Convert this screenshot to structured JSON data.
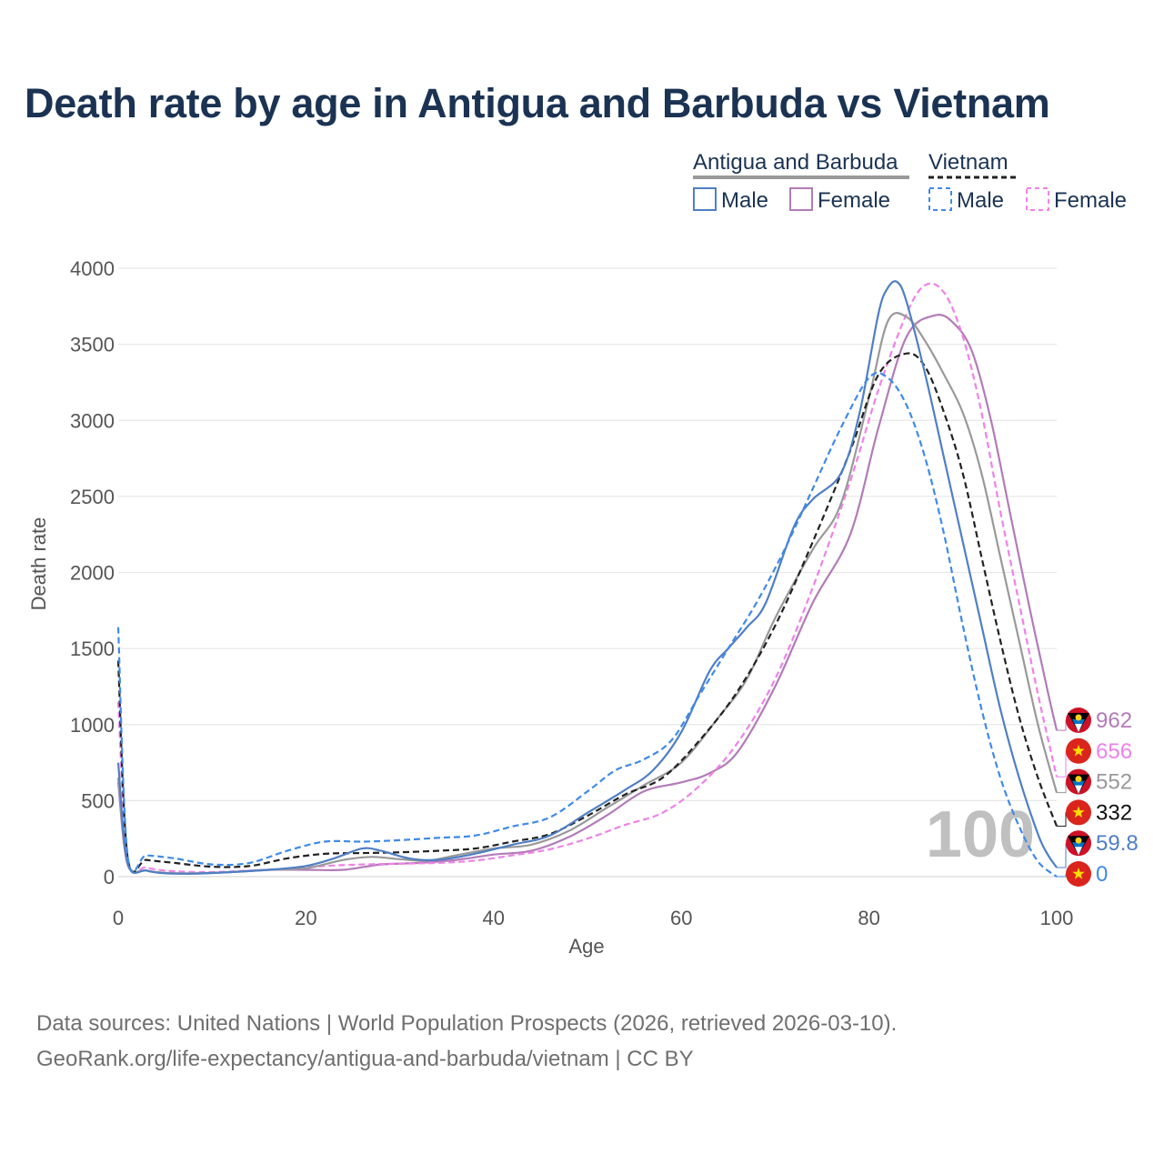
{
  "title": "Death rate by age in Antigua and Barbuda vs Vietnam",
  "legend": {
    "countries": [
      {
        "name": "Antigua and Barbuda",
        "style": "solid",
        "color": "#999999"
      },
      {
        "name": "Vietnam",
        "style": "dashed",
        "color": "#222222"
      }
    ],
    "entries": [
      {
        "label": "Male",
        "style": "solid",
        "color": "#4f7fc4"
      },
      {
        "label": "Female",
        "style": "solid",
        "color": "#b27bb8"
      },
      {
        "label": "Male",
        "style": "dashed",
        "color": "#3f8ae6"
      },
      {
        "label": "Female",
        "style": "dashed",
        "color": "#ee82e8"
      }
    ]
  },
  "watermark": "100",
  "footer": {
    "line1": "Data sources: United Nations | World Population Prospects (2026, retrieved 2026-03-10).",
    "line2": "GeoRank.org/life-expectancy/antigua-and-barbuda/vietnam | CC BY"
  },
  "chart_data": {
    "type": "line",
    "title": "Death rate by age in Antigua and Barbuda vs Vietnam",
    "xlabel": "Age",
    "ylabel": "Death rate",
    "xlim": [
      0,
      100
    ],
    "ylim": [
      0,
      4000
    ],
    "xticks": [
      0,
      20,
      40,
      60,
      80,
      100
    ],
    "yticks": [
      0,
      500,
      1000,
      1500,
      2000,
      2500,
      3000,
      3500,
      4000
    ],
    "grid": true,
    "legend_position": "top-right",
    "series": [
      {
        "name": "Antigua and Barbuda Female",
        "country": "Antigua and Barbuda",
        "sex": "Female",
        "color": "#b27bb8",
        "dash": false,
        "end_label": "962",
        "end_flag": "antigua-and-barbuda",
        "points": [
          [
            0,
            620
          ],
          [
            1,
            80
          ],
          [
            3,
            40
          ],
          [
            5,
            25
          ],
          [
            8,
            20
          ],
          [
            12,
            30
          ],
          [
            16,
            45
          ],
          [
            20,
            45
          ],
          [
            24,
            45
          ],
          [
            28,
            80
          ],
          [
            32,
            90
          ],
          [
            36,
            110
          ],
          [
            40,
            145
          ],
          [
            44,
            170
          ],
          [
            48,
            260
          ],
          [
            52,
            400
          ],
          [
            56,
            560
          ],
          [
            60,
            620
          ],
          [
            63,
            680
          ],
          [
            66,
            820
          ],
          [
            70,
            1250
          ],
          [
            74,
            1800
          ],
          [
            78,
            2250
          ],
          [
            81,
            2950
          ],
          [
            84,
            3550
          ],
          [
            87,
            3690
          ],
          [
            89,
            3640
          ],
          [
            91,
            3450
          ],
          [
            93,
            3000
          ],
          [
            95,
            2400
          ],
          [
            97,
            1800
          ],
          [
            99,
            1230
          ],
          [
            100,
            962
          ]
        ]
      },
      {
        "name": "Vietnam Female",
        "country": "Vietnam",
        "sex": "Female",
        "color": "#ee82e8",
        "dash": true,
        "end_label": "656",
        "end_flag": "vietnam",
        "points": [
          [
            0,
            1150
          ],
          [
            1,
            120
          ],
          [
            3,
            60
          ],
          [
            6,
            35
          ],
          [
            10,
            30
          ],
          [
            14,
            40
          ],
          [
            18,
            50
          ],
          [
            22,
            70
          ],
          [
            26,
            80
          ],
          [
            30,
            85
          ],
          [
            34,
            90
          ],
          [
            38,
            105
          ],
          [
            42,
            140
          ],
          [
            46,
            180
          ],
          [
            50,
            250
          ],
          [
            54,
            340
          ],
          [
            58,
            420
          ],
          [
            62,
            600
          ],
          [
            66,
            880
          ],
          [
            70,
            1300
          ],
          [
            74,
            1900
          ],
          [
            78,
            2600
          ],
          [
            81,
            3200
          ],
          [
            84,
            3700
          ],
          [
            86,
            3890
          ],
          [
            88,
            3840
          ],
          [
            90,
            3550
          ],
          [
            92,
            3050
          ],
          [
            94,
            2400
          ],
          [
            96,
            1800
          ],
          [
            98,
            1200
          ],
          [
            100,
            656
          ]
        ]
      },
      {
        "name": "Antigua and Barbuda Total",
        "country": "Antigua and Barbuda",
        "sex": "Total",
        "color": "#999999",
        "dash": false,
        "end_label": "552",
        "end_flag": "antigua-and-barbuda",
        "points": [
          [
            0,
            650
          ],
          [
            1,
            90
          ],
          [
            3,
            40
          ],
          [
            5,
            25
          ],
          [
            8,
            22
          ],
          [
            12,
            30
          ],
          [
            16,
            45
          ],
          [
            20,
            55
          ],
          [
            24,
            110
          ],
          [
            27,
            130
          ],
          [
            30,
            115
          ],
          [
            33,
            105
          ],
          [
            36,
            140
          ],
          [
            40,
            185
          ],
          [
            44,
            210
          ],
          [
            48,
            300
          ],
          [
            52,
            450
          ],
          [
            56,
            600
          ],
          [
            60,
            750
          ],
          [
            64,
            1050
          ],
          [
            67,
            1300
          ],
          [
            70,
            1700
          ],
          [
            74,
            2150
          ],
          [
            77,
            2450
          ],
          [
            80,
            3150
          ],
          [
            82,
            3650
          ],
          [
            84,
            3680
          ],
          [
            86,
            3520
          ],
          [
            88,
            3300
          ],
          [
            90,
            3050
          ],
          [
            92,
            2650
          ],
          [
            94,
            2100
          ],
          [
            96,
            1550
          ],
          [
            98,
            1000
          ],
          [
            100,
            552
          ]
        ]
      },
      {
        "name": "Vietnam Total",
        "country": "Vietnam",
        "sex": "Total",
        "color": "#222222",
        "dash": true,
        "end_label": "332",
        "end_flag": "vietnam",
        "points": [
          [
            0,
            1420
          ],
          [
            1,
            130
          ],
          [
            3,
            110
          ],
          [
            6,
            90
          ],
          [
            10,
            65
          ],
          [
            14,
            70
          ],
          [
            18,
            120
          ],
          [
            22,
            150
          ],
          [
            26,
            155
          ],
          [
            30,
            160
          ],
          [
            34,
            170
          ],
          [
            38,
            185
          ],
          [
            42,
            230
          ],
          [
            46,
            280
          ],
          [
            50,
            400
          ],
          [
            54,
            540
          ],
          [
            58,
            650
          ],
          [
            62,
            900
          ],
          [
            66,
            1220
          ],
          [
            70,
            1650
          ],
          [
            74,
            2200
          ],
          [
            78,
            2800
          ],
          [
            81,
            3300
          ],
          [
            84,
            3440
          ],
          [
            86,
            3350
          ],
          [
            88,
            3050
          ],
          [
            90,
            2650
          ],
          [
            92,
            2100
          ],
          [
            94,
            1550
          ],
          [
            96,
            1050
          ],
          [
            98,
            650
          ],
          [
            100,
            332
          ]
        ]
      },
      {
        "name": "Antigua and Barbuda Male",
        "country": "Antigua and Barbuda",
        "sex": "Male",
        "color": "#4f7fc4",
        "dash": false,
        "end_label": "59.8",
        "end_flag": "antigua-and-barbuda",
        "points": [
          [
            0,
            750
          ],
          [
            1,
            90
          ],
          [
            3,
            40
          ],
          [
            5,
            22
          ],
          [
            8,
            20
          ],
          [
            12,
            30
          ],
          [
            16,
            45
          ],
          [
            20,
            70
          ],
          [
            23,
            120
          ],
          [
            26,
            185
          ],
          [
            28,
            170
          ],
          [
            31,
            120
          ],
          [
            34,
            110
          ],
          [
            38,
            150
          ],
          [
            42,
            210
          ],
          [
            46,
            270
          ],
          [
            50,
            420
          ],
          [
            54,
            570
          ],
          [
            57,
            700
          ],
          [
            60,
            950
          ],
          [
            63,
            1350
          ],
          [
            65,
            1500
          ],
          [
            67,
            1640
          ],
          [
            69,
            1800
          ],
          [
            72,
            2300
          ],
          [
            74,
            2480
          ],
          [
            77,
            2650
          ],
          [
            79,
            3050
          ],
          [
            81,
            3700
          ],
          [
            82,
            3870
          ],
          [
            83,
            3910
          ],
          [
            84,
            3780
          ],
          [
            86,
            3300
          ],
          [
            88,
            2750
          ],
          [
            90,
            2200
          ],
          [
            92,
            1650
          ],
          [
            94,
            1100
          ],
          [
            96,
            650
          ],
          [
            98,
            280
          ],
          [
            99,
            150
          ],
          [
            100,
            59.8
          ]
        ]
      },
      {
        "name": "Vietnam Male",
        "country": "Vietnam",
        "sex": "Male",
        "color": "#3f8ae6",
        "dash": true,
        "end_label": "0",
        "end_flag": "vietnam",
        "points": [
          [
            0,
            1640
          ],
          [
            1,
            140
          ],
          [
            3,
            140
          ],
          [
            6,
            120
          ],
          [
            10,
            80
          ],
          [
            14,
            90
          ],
          [
            18,
            170
          ],
          [
            22,
            230
          ],
          [
            26,
            230
          ],
          [
            30,
            240
          ],
          [
            34,
            255
          ],
          [
            38,
            270
          ],
          [
            42,
            330
          ],
          [
            46,
            390
          ],
          [
            50,
            560
          ],
          [
            53,
            700
          ],
          [
            56,
            770
          ],
          [
            59,
            900
          ],
          [
            62,
            1200
          ],
          [
            65,
            1500
          ],
          [
            68,
            1800
          ],
          [
            71,
            2150
          ],
          [
            74,
            2550
          ],
          [
            77,
            2950
          ],
          [
            80,
            3280
          ],
          [
            82,
            3280
          ],
          [
            84,
            3100
          ],
          [
            86,
            2750
          ],
          [
            88,
            2250
          ],
          [
            90,
            1650
          ],
          [
            92,
            1100
          ],
          [
            94,
            650
          ],
          [
            96,
            330
          ],
          [
            98,
            100
          ],
          [
            100,
            0
          ]
        ]
      }
    ]
  }
}
